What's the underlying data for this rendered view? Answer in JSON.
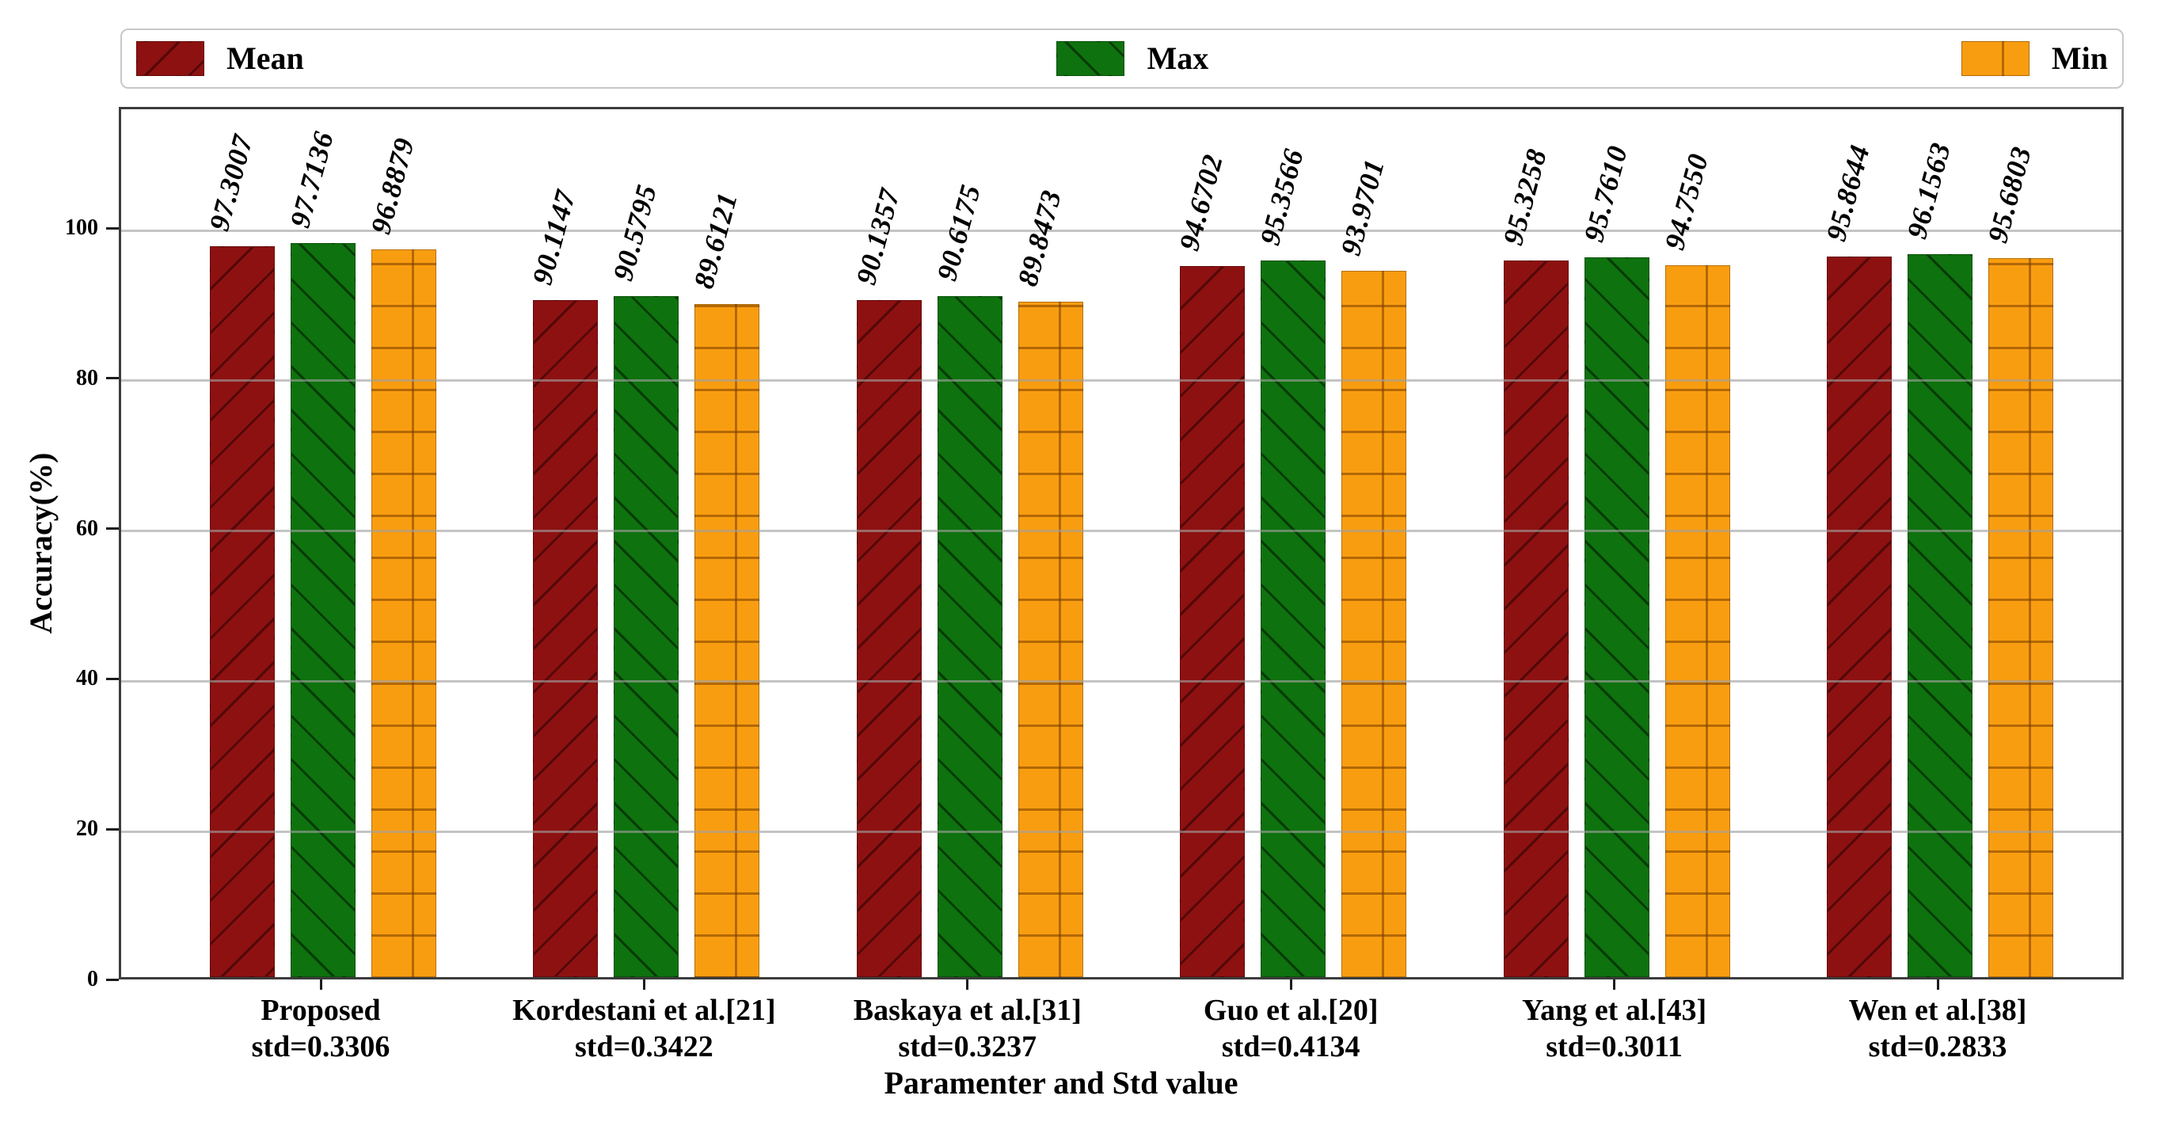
{
  "colors": {
    "background": "#ffffff",
    "frame": "#3c3c3c",
    "gridline": "#9f9f9f",
    "text": "#000000",
    "legend_border": "#c8c8c8",
    "mean_bar": "#8e1111",
    "max_bar": "#0e720e",
    "min_bar": "#f99d10"
  },
  "chart_data": {
    "type": "bar",
    "title": "",
    "xlabel": "Paramenter and Std value",
    "ylabel": "Accuracy(%)",
    "ylim": [
      0,
      116
    ],
    "yticks": [
      0,
      20,
      40,
      60,
      80,
      100
    ],
    "grid": true,
    "legend_position": "top",
    "bar_label_style": "italic, rotated 75deg",
    "categories": [
      "Proposed",
      "Kordestani et al.[21]",
      "Baskaya et al.[31]",
      "Guo et al.[20]",
      "Yang et al.[43]",
      "Wen et al.[38]"
    ],
    "category_std_labels": [
      "std=0.3306",
      "std=0.3422",
      "std=0.3237",
      "std=0.4134",
      "std=0.3011",
      "std=0.2833"
    ],
    "series": [
      {
        "name": "Mean",
        "color": "#8e1111",
        "hatch": "/",
        "values": [
          "97.3007",
          "90.1147",
          "90.1357",
          "94.6702",
          "95.3258",
          "95.8644"
        ]
      },
      {
        "name": "Max",
        "color": "#0e720e",
        "hatch": "\\",
        "values": [
          "97.7136",
          "90.5795",
          "90.6175",
          "95.3566",
          "95.7610",
          "96.1563"
        ]
      },
      {
        "name": "Min",
        "color": "#f99d10",
        "hatch": "+",
        "values": [
          "96.8879",
          "89.6121",
          "89.8473",
          "93.9701",
          "94.7550",
          "95.6803"
        ]
      }
    ]
  }
}
